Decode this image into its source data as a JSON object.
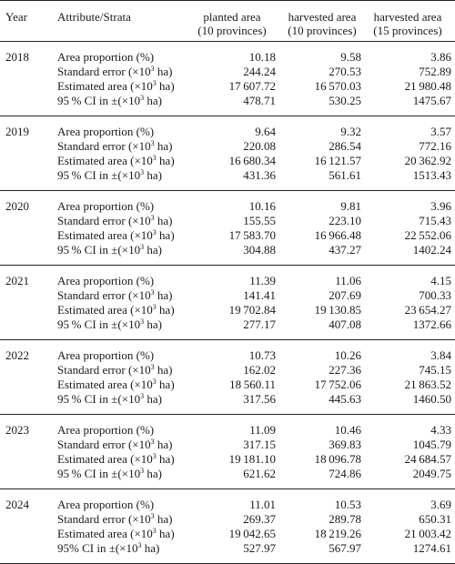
{
  "headers": {
    "year": "Year",
    "attr": "Attribute/Strata",
    "c1": [
      "planted area",
      "(10 provinces)"
    ],
    "c2": [
      "harvested area",
      "(10 provinces)"
    ],
    "c3": [
      "harvested area",
      "(15 provinces)"
    ]
  },
  "attr_labels": [
    "Area proportion (%)",
    "Standard error (×10³ ha)",
    "Estimated area (×10³ ha)",
    "95 % CI in ±(×10³ ha)"
  ],
  "attr_label_2024_ci": "95% CI in ±(×10³ ha)",
  "groups": [
    {
      "year": "2018",
      "rows": [
        [
          "10.18",
          "9.58",
          "3.86"
        ],
        [
          "244.24",
          "270.53",
          "752.89"
        ],
        [
          "17 607.72",
          "16 570.03",
          "21 980.48"
        ],
        [
          "478.71",
          "530.25",
          "1475.67"
        ]
      ]
    },
    {
      "year": "2019",
      "rows": [
        [
          "9.64",
          "9.32",
          "3.57"
        ],
        [
          "220.08",
          "286.54",
          "772.16"
        ],
        [
          "16 680.34",
          "16 121.57",
          "20 362.92"
        ],
        [
          "431.36",
          "561.61",
          "1513.43"
        ]
      ]
    },
    {
      "year": "2020",
      "rows": [
        [
          "10.16",
          "9.81",
          "3.96"
        ],
        [
          "155.55",
          "223.10",
          "715.43"
        ],
        [
          "17 583.70",
          "16 966.48",
          "22 552.06"
        ],
        [
          "304.88",
          "437.27",
          "1402.24"
        ]
      ]
    },
    {
      "year": "2021",
      "rows": [
        [
          "11.39",
          "11.06",
          "4.15"
        ],
        [
          "141.41",
          "207.69",
          "700.33"
        ],
        [
          "19 702.84",
          "19 130.85",
          "23 654.27"
        ],
        [
          "277.17",
          "407.08",
          "1372.66"
        ]
      ]
    },
    {
      "year": "2022",
      "rows": [
        [
          "10.73",
          "10.26",
          "3.84"
        ],
        [
          "162.02",
          "227.36",
          "745.15"
        ],
        [
          "18 560.11",
          "17 752.06",
          "21 863.52"
        ],
        [
          "317.56",
          "445.63",
          "1460.50"
        ]
      ]
    },
    {
      "year": "2023",
      "rows": [
        [
          "11.09",
          "10.46",
          "4.33"
        ],
        [
          "317.15",
          "369.83",
          "1045.79"
        ],
        [
          "19 181.10",
          "18 096.78",
          "24 684.57"
        ],
        [
          "621.62",
          "724.86",
          "2049.75"
        ]
      ]
    },
    {
      "year": "2024",
      "rows": [
        [
          "11.01",
          "10.53",
          "3.69"
        ],
        [
          "269.37",
          "289.78",
          "650.31"
        ],
        [
          "19 042.65",
          "18 219.26",
          "21 003.42"
        ],
        [
          "527.97",
          "567.97",
          "1274.61"
        ]
      ]
    }
  ]
}
